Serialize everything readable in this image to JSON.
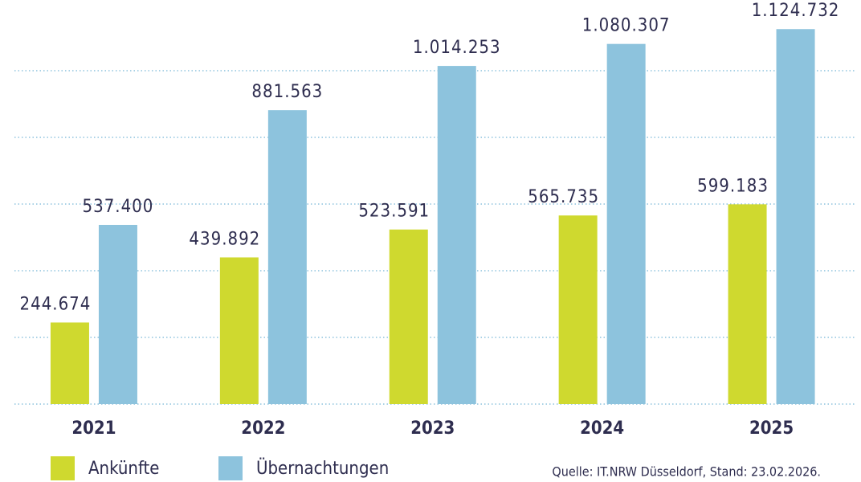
{
  "chart_data": {
    "type": "bar",
    "categories": [
      "2021",
      "2022",
      "2023",
      "2024",
      "2025"
    ],
    "series": [
      {
        "name": "Ankünfte",
        "color": "#cfd92f",
        "values": [
          244674,
          439892,
          523591,
          565735,
          599183
        ],
        "value_labels": [
          "244.674",
          "439.892",
          "523.591",
          "565.735",
          "599.183"
        ]
      },
      {
        "name": "Übernachtungen",
        "color": "#8dc3dd",
        "values": [
          537400,
          881563,
          1014253,
          1080307,
          1124732
        ],
        "value_labels": [
          "537.400",
          "881.563",
          "1.014.253",
          "1.080.307",
          "1.124.732"
        ]
      }
    ],
    "ylim": [
      0,
      1200000
    ],
    "yticks": [
      0,
      200000,
      400000,
      600000,
      800000,
      1000000
    ],
    "grid": true,
    "source": "Quelle: IT.NRW Düsseldorf, Stand: 23.02.2026."
  }
}
